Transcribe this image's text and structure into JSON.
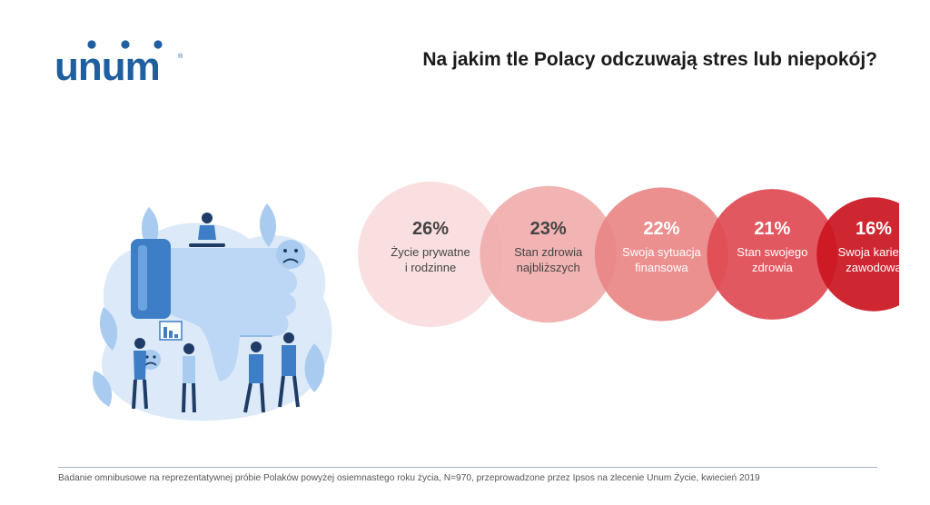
{
  "brand": {
    "name": "unum",
    "trademark": "®"
  },
  "header": {
    "title": "Na jakim tle Polacy odczuwają stres lub niepokój?"
  },
  "footer": {
    "note": "Badanie omnibusowe na reprezentatywnej próbie Polaków powyżej osiemnastego roku życia, N=970, przeprowadzone przez Ipsos na zlecenie Unum Życie, kwiecień 2019"
  },
  "illustration": {
    "icons": [
      "thumbs-down-icon",
      "sad-face-icon",
      "declining-chart-icon",
      "leaf-icon",
      "people-icon"
    ]
  },
  "colors": {
    "brand": "#1f5fa0",
    "text_dark": "#444444",
    "text_light": "#ffffff"
  },
  "chart_data": {
    "type": "bubble",
    "unit": "%",
    "items": [
      {
        "value": 26,
        "label": "26%",
        "lines": [
          "Życie prywatne",
          "i rodzinne"
        ],
        "color": "#f9dcdc"
      },
      {
        "value": 23,
        "label": "23%",
        "lines": [
          "Stan zdrowia",
          "najbliższych"
        ],
        "color": "#f1acac"
      },
      {
        "value": 22,
        "label": "22%",
        "lines": [
          "Swoja sytuacja",
          "finansowa"
        ],
        "color": "#e98686"
      },
      {
        "value": 21,
        "label": "21%",
        "lines": [
          "Stan swojego",
          "zdrowia"
        ],
        "color": "#e04a52"
      },
      {
        "value": 16,
        "label": "16%",
        "lines": [
          "Swoja kariera",
          "zawodowa"
        ],
        "color": "#cb1520"
      }
    ]
  }
}
